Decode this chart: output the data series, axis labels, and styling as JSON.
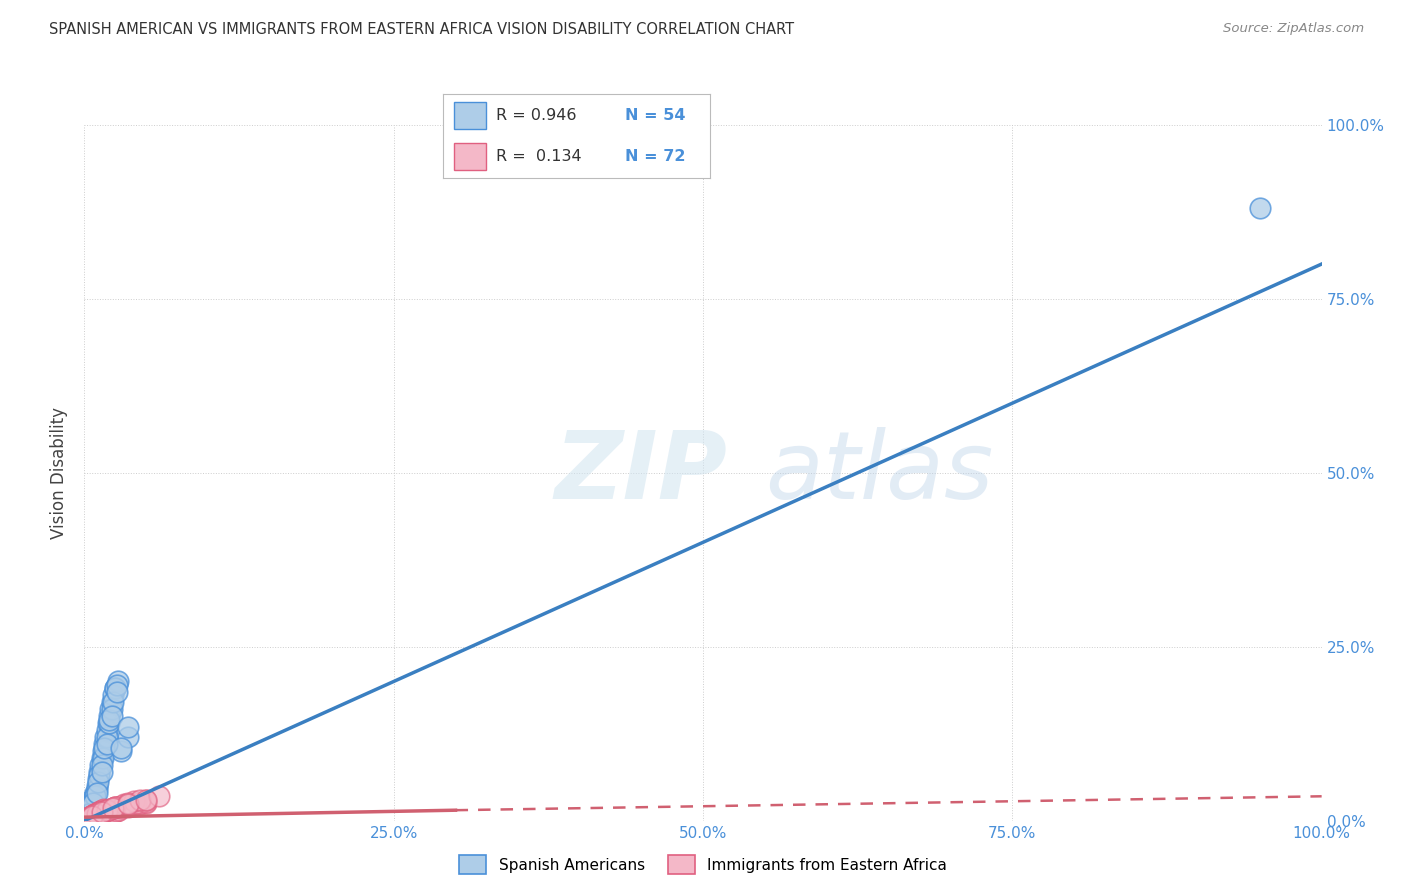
{
  "title": "SPANISH AMERICAN VS IMMIGRANTS FROM EASTERN AFRICA VISION DISABILITY CORRELATION CHART",
  "source": "Source: ZipAtlas.com",
  "ylabel": "Vision Disability",
  "background_color": "#ffffff",
  "grid_color": "#c8c8c8",
  "blue_fill": "#aecde8",
  "blue_edge": "#4a90d9",
  "pink_fill": "#f4b8c8",
  "pink_edge": "#e06080",
  "blue_line_color": "#3a7fc1",
  "pink_line_color": "#d06070",
  "axis_tick_color": "#4a90d9",
  "title_color": "#333333",
  "R_blue": 0.946,
  "N_blue": 54,
  "R_pink": 0.134,
  "N_pink": 72,
  "blue_line_x0": 0.0,
  "blue_line_y0": 0.0,
  "blue_line_x1": 100.0,
  "blue_line_y1": 80.0,
  "pink_line_x0": 0.0,
  "pink_line_y0": 0.5,
  "pink_line_solid_x1": 30.0,
  "pink_line_solid_y1": 1.5,
  "pink_line_dash_x1": 100.0,
  "pink_line_dash_y1": 3.5,
  "blue_scatter_x": [
    0.2,
    0.4,
    0.5,
    0.6,
    0.7,
    0.8,
    0.9,
    1.0,
    1.1,
    1.2,
    1.3,
    1.4,
    1.5,
    1.6,
    1.7,
    1.8,
    1.9,
    2.0,
    2.1,
    2.2,
    2.3,
    2.5,
    2.7,
    3.0,
    3.5,
    0.3,
    0.5,
    0.8,
    1.0,
    1.2,
    1.5,
    1.8,
    2.0,
    2.2,
    2.5,
    0.4,
    0.6,
    0.9,
    1.1,
    1.4,
    1.6,
    2.0,
    2.3,
    2.6,
    0.3,
    0.7,
    1.0,
    1.4,
    1.8,
    2.2,
    2.6,
    3.0,
    3.5,
    95.0
  ],
  "blue_scatter_y": [
    1.0,
    1.5,
    2.0,
    2.5,
    3.0,
    3.5,
    4.0,
    5.0,
    6.0,
    7.0,
    8.0,
    9.0,
    10.0,
    11.0,
    12.0,
    13.0,
    14.0,
    15.0,
    16.0,
    17.0,
    18.0,
    19.0,
    20.0,
    10.0,
    12.0,
    1.2,
    1.8,
    2.8,
    4.5,
    6.5,
    9.0,
    12.0,
    14.0,
    16.0,
    19.0,
    1.5,
    2.2,
    3.5,
    5.5,
    8.0,
    10.5,
    14.5,
    17.0,
    19.5,
    1.0,
    2.5,
    4.0,
    7.0,
    11.0,
    15.0,
    18.5,
    10.5,
    13.5,
    88.0
  ],
  "pink_scatter_x": [
    0.2,
    0.4,
    0.5,
    0.6,
    0.7,
    0.8,
    0.9,
    1.0,
    1.1,
    1.2,
    1.3,
    1.4,
    1.5,
    1.6,
    1.7,
    1.8,
    1.9,
    2.0,
    2.1,
    2.2,
    2.4,
    2.6,
    2.8,
    3.0,
    3.5,
    4.0,
    4.5,
    5.0,
    0.3,
    0.5,
    0.7,
    1.0,
    1.3,
    1.6,
    1.9,
    2.3,
    2.7,
    3.2,
    3.8,
    4.5,
    0.4,
    0.6,
    0.9,
    1.2,
    1.5,
    1.8,
    2.1,
    2.5,
    3.0,
    3.6,
    4.2,
    5.0,
    0.3,
    0.8,
    1.3,
    1.9,
    2.5,
    3.2,
    4.0,
    5.0,
    0.5,
    1.0,
    1.8,
    2.5,
    3.5,
    4.5,
    6.0,
    0.6,
    1.4,
    2.3,
    3.5,
    5.0
  ],
  "pink_scatter_y": [
    0.3,
    0.5,
    0.6,
    0.7,
    0.8,
    0.9,
    1.0,
    1.1,
    1.2,
    1.3,
    1.4,
    1.5,
    1.6,
    1.7,
    1.5,
    1.3,
    1.1,
    0.9,
    0.8,
    1.0,
    1.2,
    1.4,
    1.6,
    1.8,
    2.0,
    2.2,
    2.4,
    2.6,
    0.4,
    0.6,
    0.8,
    1.0,
    1.2,
    1.4,
    1.6,
    1.8,
    2.0,
    2.2,
    2.4,
    2.6,
    0.5,
    0.7,
    0.9,
    1.1,
    1.3,
    1.5,
    1.7,
    1.9,
    2.1,
    2.3,
    2.5,
    2.7,
    0.4,
    0.8,
    1.2,
    1.6,
    2.0,
    2.4,
    2.8,
    3.0,
    0.5,
    1.0,
    1.5,
    2.0,
    2.5,
    3.0,
    3.5,
    0.6,
    1.2,
    1.8,
    2.4,
    3.0
  ],
  "xlim": [
    0,
    100
  ],
  "ylim": [
    0,
    100
  ],
  "xticks": [
    0,
    25,
    50,
    75,
    100
  ],
  "yticks": [
    0,
    25,
    50,
    75,
    100
  ],
  "xticklabels": [
    "0.0%",
    "25.0%",
    "50.0%",
    "75.0%",
    "100.0%"
  ],
  "yticklabels": [
    "0.0%",
    "25.0%",
    "50.0%",
    "75.0%",
    "100.0%"
  ],
  "watermark_zip": "ZIP",
  "watermark_atlas": "atlas",
  "legend_R_color": "#333333",
  "legend_N_color": "#4a90d9"
}
